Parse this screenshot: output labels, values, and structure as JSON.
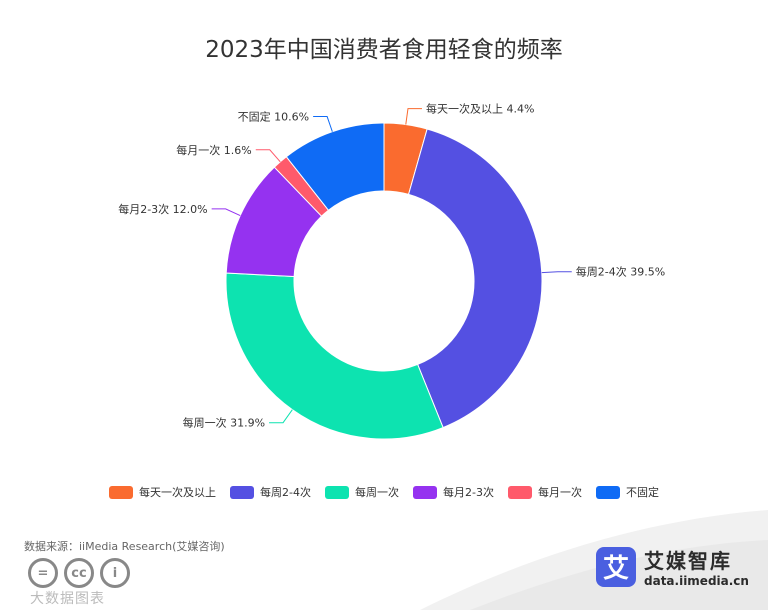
{
  "chart_data": {
    "type": "pie",
    "variant": "donut",
    "title": "2023年中国消费者食用轻食的频率",
    "categories": [
      "每天一次及以上",
      "每周2-4次",
      "每周一次",
      "每月2-3次",
      "每月一次",
      "不固定"
    ],
    "values": [
      4.4,
      39.5,
      31.9,
      12.0,
      1.6,
      10.6
    ],
    "value_labels": [
      "4.4%",
      "39.5%",
      "31.9%",
      "12.0%",
      "1.6%",
      "10.6%"
    ],
    "colors": [
      "#fa6b2f",
      "#5450e2",
      "#0de3b0",
      "#9532f0",
      "#ff5a6b",
      "#0f6bf5"
    ],
    "legend_position": "bottom"
  },
  "source_text": "数据来源：iiMedia Research(艾媒咨询)",
  "license_icons": [
    "equals-icon",
    "cc-icon",
    "person-icon"
  ],
  "license_labels": [
    "=",
    "cc",
    "i"
  ],
  "watermark_text": "大数据图表",
  "brand": {
    "logo_char": "艾",
    "name": "艾媒智库",
    "url": "data.iimedia.cn"
  }
}
